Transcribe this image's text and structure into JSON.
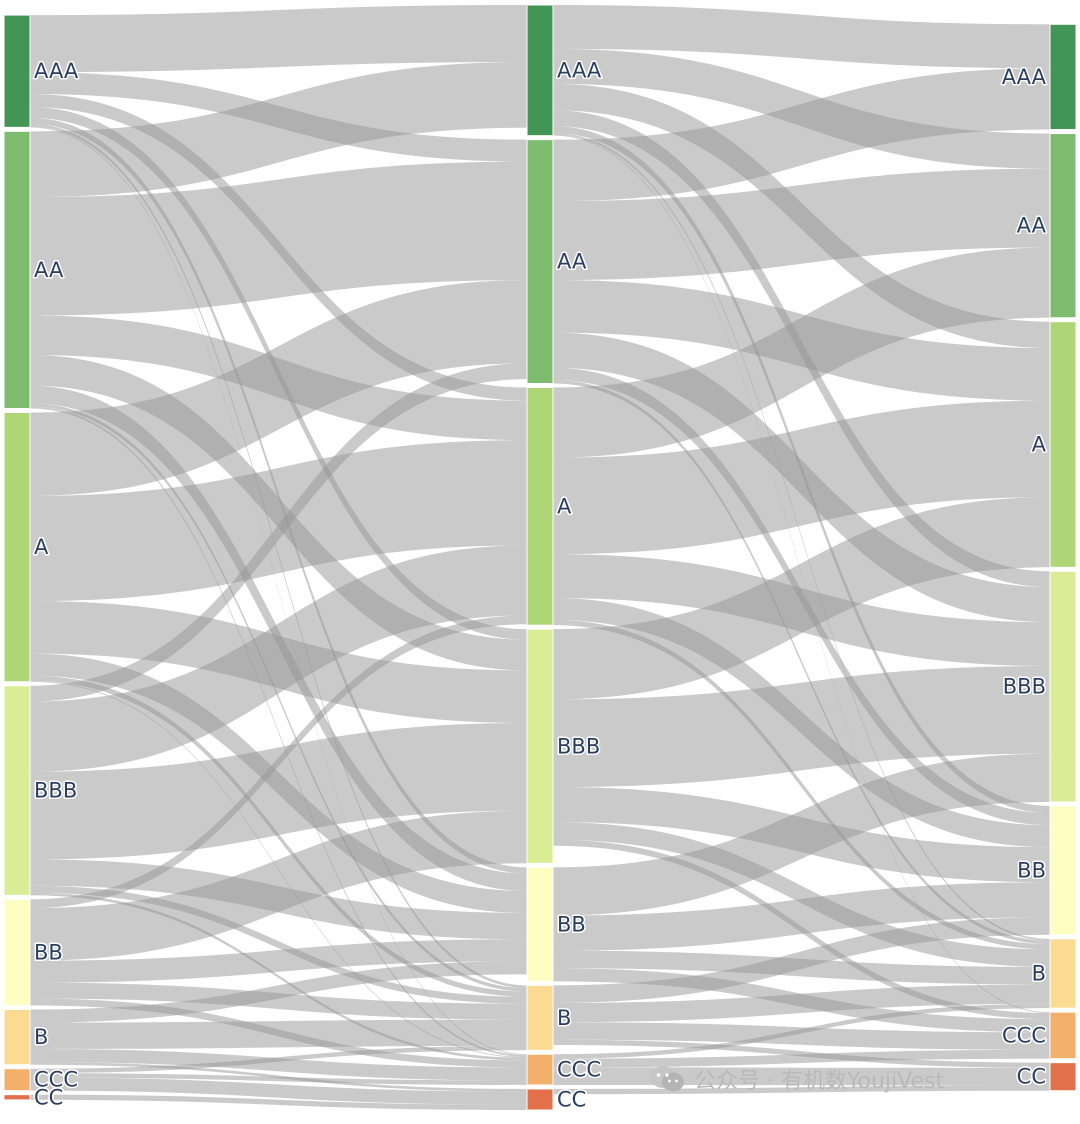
{
  "chart_data": {
    "type": "sankey",
    "columns": 3,
    "nodes": [
      {
        "id": "L0_AAA",
        "label": "AAA",
        "column": 0,
        "color": "#429554"
      },
      {
        "id": "L0_AA",
        "label": "AA",
        "column": 0,
        "color": "#7dbb6f"
      },
      {
        "id": "L0_A",
        "label": "A",
        "column": 0,
        "color": "#aed677"
      },
      {
        "id": "L0_BBB",
        "label": "BBB",
        "column": 0,
        "color": "#dbec97"
      },
      {
        "id": "L0_BB",
        "label": "BB",
        "column": 0,
        "color": "#fefec2"
      },
      {
        "id": "L0_B",
        "label": "B",
        "column": 0,
        "color": "#fbdb92"
      },
      {
        "id": "L0_CCC",
        "label": "CCC",
        "column": 0,
        "color": "#f3b06b"
      },
      {
        "id": "L0_CC",
        "label": "CC",
        "column": 0,
        "color": "#e2704a"
      },
      {
        "id": "L1_AAA",
        "label": "AAA",
        "column": 1,
        "color": "#429554"
      },
      {
        "id": "L1_AA",
        "label": "AA",
        "column": 1,
        "color": "#7dbb6f"
      },
      {
        "id": "L1_A",
        "label": "A",
        "column": 1,
        "color": "#aed677"
      },
      {
        "id": "L1_BBB",
        "label": "BBB",
        "column": 1,
        "color": "#dbec97"
      },
      {
        "id": "L1_BB",
        "label": "BB",
        "column": 1,
        "color": "#fefec2"
      },
      {
        "id": "L1_B",
        "label": "B",
        "column": 1,
        "color": "#fbdb92"
      },
      {
        "id": "L1_CCC",
        "label": "CCC",
        "column": 1,
        "color": "#f3b06b"
      },
      {
        "id": "L1_CC",
        "label": "CC",
        "column": 1,
        "color": "#e2704a"
      },
      {
        "id": "L2_AAA",
        "label": "AAA",
        "column": 2,
        "color": "#429554"
      },
      {
        "id": "L2_AA",
        "label": "AA",
        "column": 2,
        "color": "#7dbb6f"
      },
      {
        "id": "L2_A",
        "label": "A",
        "column": 2,
        "color": "#aed677"
      },
      {
        "id": "L2_BBB",
        "label": "BBB",
        "column": 2,
        "color": "#dbec97"
      },
      {
        "id": "L2_BB",
        "label": "BB",
        "column": 2,
        "color": "#fefec2"
      },
      {
        "id": "L2_B",
        "label": "B",
        "column": 2,
        "color": "#fbdb92"
      },
      {
        "id": "L2_CCC",
        "label": "CCC",
        "column": 2,
        "color": "#f3b06b"
      },
      {
        "id": "L2_CC",
        "label": "CC",
        "column": 2,
        "color": "#e2704a"
      }
    ],
    "links": [
      {
        "source": "L0_AAA",
        "target": "L1_AAA",
        "value": 65
      },
      {
        "source": "L0_AAA",
        "target": "L1_AA",
        "value": 25
      },
      {
        "source": "L0_AAA",
        "target": "L1_A",
        "value": 15
      },
      {
        "source": "L0_AAA",
        "target": "L1_BBB",
        "value": 12
      },
      {
        "source": "L0_AAA",
        "target": "L1_BB",
        "value": 7
      },
      {
        "source": "L0_AAA",
        "target": "L1_B",
        "value": 3
      },
      {
        "source": "L0_AAA",
        "target": "L1_CCC",
        "value": 1
      },
      {
        "source": "L0_AA",
        "target": "L1_AAA",
        "value": 75
      },
      {
        "source": "L0_AA",
        "target": "L1_AA",
        "value": 135
      },
      {
        "source": "L0_AA",
        "target": "L1_A",
        "value": 45
      },
      {
        "source": "L0_AA",
        "target": "L1_BBB",
        "value": 35
      },
      {
        "source": "L0_AA",
        "target": "L1_BB",
        "value": 20
      },
      {
        "source": "L0_AA",
        "target": "L1_B",
        "value": 4
      },
      {
        "source": "L0_AA",
        "target": "L1_CCC",
        "value": 2
      },
      {
        "source": "L0_A",
        "target": "L1_AA",
        "value": 95
      },
      {
        "source": "L0_A",
        "target": "L1_A",
        "value": 120
      },
      {
        "source": "L0_A",
        "target": "L1_BBB",
        "value": 60
      },
      {
        "source": "L0_A",
        "target": "L1_BB",
        "value": 25
      },
      {
        "source": "L0_A",
        "target": "L1_B",
        "value": 6
      },
      {
        "source": "L0_A",
        "target": "L1_CCC",
        "value": 1
      },
      {
        "source": "L0_BBB",
        "target": "L1_AA",
        "value": 18
      },
      {
        "source": "L0_BBB",
        "target": "L1_A",
        "value": 80
      },
      {
        "source": "L0_BBB",
        "target": "L1_BBB",
        "value": 100
      },
      {
        "source": "L0_BBB",
        "target": "L1_BB",
        "value": 30
      },
      {
        "source": "L0_BBB",
        "target": "L1_B",
        "value": 8
      },
      {
        "source": "L0_BBB",
        "target": "L1_CCC",
        "value": 3
      },
      {
        "source": "L0_BB",
        "target": "L1_A",
        "value": 10
      },
      {
        "source": "L0_BB",
        "target": "L1_BBB",
        "value": 60
      },
      {
        "source": "L0_BB",
        "target": "L1_BB",
        "value": 25
      },
      {
        "source": "L0_BB",
        "target": "L1_B",
        "value": 18
      },
      {
        "source": "L0_BB",
        "target": "L1_CCC",
        "value": 8
      },
      {
        "source": "L0_B",
        "target": "L1_BB",
        "value": 15
      },
      {
        "source": "L0_B",
        "target": "L1_B",
        "value": 30
      },
      {
        "source": "L0_B",
        "target": "L1_CCC",
        "value": 15
      },
      {
        "source": "L0_B",
        "target": "L1_CC",
        "value": 3
      },
      {
        "source": "L0_CCC",
        "target": "L1_B",
        "value": 5
      },
      {
        "source": "L0_CCC",
        "target": "L1_CCC",
        "value": 5
      },
      {
        "source": "L0_CCC",
        "target": "L1_CC",
        "value": 15
      },
      {
        "source": "L0_CC",
        "target": "L1_CC",
        "value": 6
      },
      {
        "source": "L1_AAA",
        "target": "L2_AAA",
        "value": 50
      },
      {
        "source": "L1_AAA",
        "target": "L2_AA",
        "value": 40
      },
      {
        "source": "L1_AAA",
        "target": "L2_A",
        "value": 30
      },
      {
        "source": "L1_AAA",
        "target": "L2_BBB",
        "value": 18
      },
      {
        "source": "L1_AAA",
        "target": "L2_BB",
        "value": 8
      },
      {
        "source": "L1_AAA",
        "target": "L2_B",
        "value": 2
      },
      {
        "source": "L1_AAA",
        "target": "L2_CCC",
        "value": 1
      },
      {
        "source": "L1_AA",
        "target": "L2_AAA",
        "value": 70
      },
      {
        "source": "L1_AA",
        "target": "L2_AA",
        "value": 90
      },
      {
        "source": "L1_AA",
        "target": "L2_A",
        "value": 60
      },
      {
        "source": "L1_AA",
        "target": "L2_BBB",
        "value": 40
      },
      {
        "source": "L1_AA",
        "target": "L2_BB",
        "value": 14
      },
      {
        "source": "L1_AA",
        "target": "L2_B",
        "value": 4
      },
      {
        "source": "L1_A",
        "target": "L2_AA",
        "value": 80
      },
      {
        "source": "L1_A",
        "target": "L2_A",
        "value": 110
      },
      {
        "source": "L1_A",
        "target": "L2_BBB",
        "value": 50
      },
      {
        "source": "L1_A",
        "target": "L2_BB",
        "value": 25
      },
      {
        "source": "L1_A",
        "target": "L2_B",
        "value": 6
      },
      {
        "source": "L1_BBB",
        "target": "L2_A",
        "value": 80
      },
      {
        "source": "L1_BBB",
        "target": "L2_BBB",
        "value": 100
      },
      {
        "source": "L1_BBB",
        "target": "L2_BB",
        "value": 40
      },
      {
        "source": "L1_BBB",
        "target": "L2_B",
        "value": 20
      },
      {
        "source": "L1_BBB",
        "target": "L2_CCC",
        "value": 7
      },
      {
        "source": "L1_BB",
        "target": "L2_BBB",
        "value": 55
      },
      {
        "source": "L1_BB",
        "target": "L2_BB",
        "value": 40
      },
      {
        "source": "L1_BB",
        "target": "L2_B",
        "value": 20
      },
      {
        "source": "L1_BB",
        "target": "L2_CCC",
        "value": 15
      },
      {
        "source": "L1_B",
        "target": "L2_BB",
        "value": 20
      },
      {
        "source": "L1_B",
        "target": "L2_B",
        "value": 22
      },
      {
        "source": "L1_B",
        "target": "L2_CCC",
        "value": 20
      },
      {
        "source": "L1_B",
        "target": "L2_CC",
        "value": 6
      },
      {
        "source": "L1_CCC",
        "target": "L2_B",
        "value": 5
      },
      {
        "source": "L1_CCC",
        "target": "L2_CCC",
        "value": 10
      },
      {
        "source": "L1_CCC",
        "target": "L2_CC",
        "value": 20
      },
      {
        "source": "L1_CC",
        "target": "L2_CC",
        "value": 6
      }
    ]
  },
  "watermark": {
    "icon": "wechat-icon",
    "text": "公众号 · 有机数YoujiVest"
  }
}
